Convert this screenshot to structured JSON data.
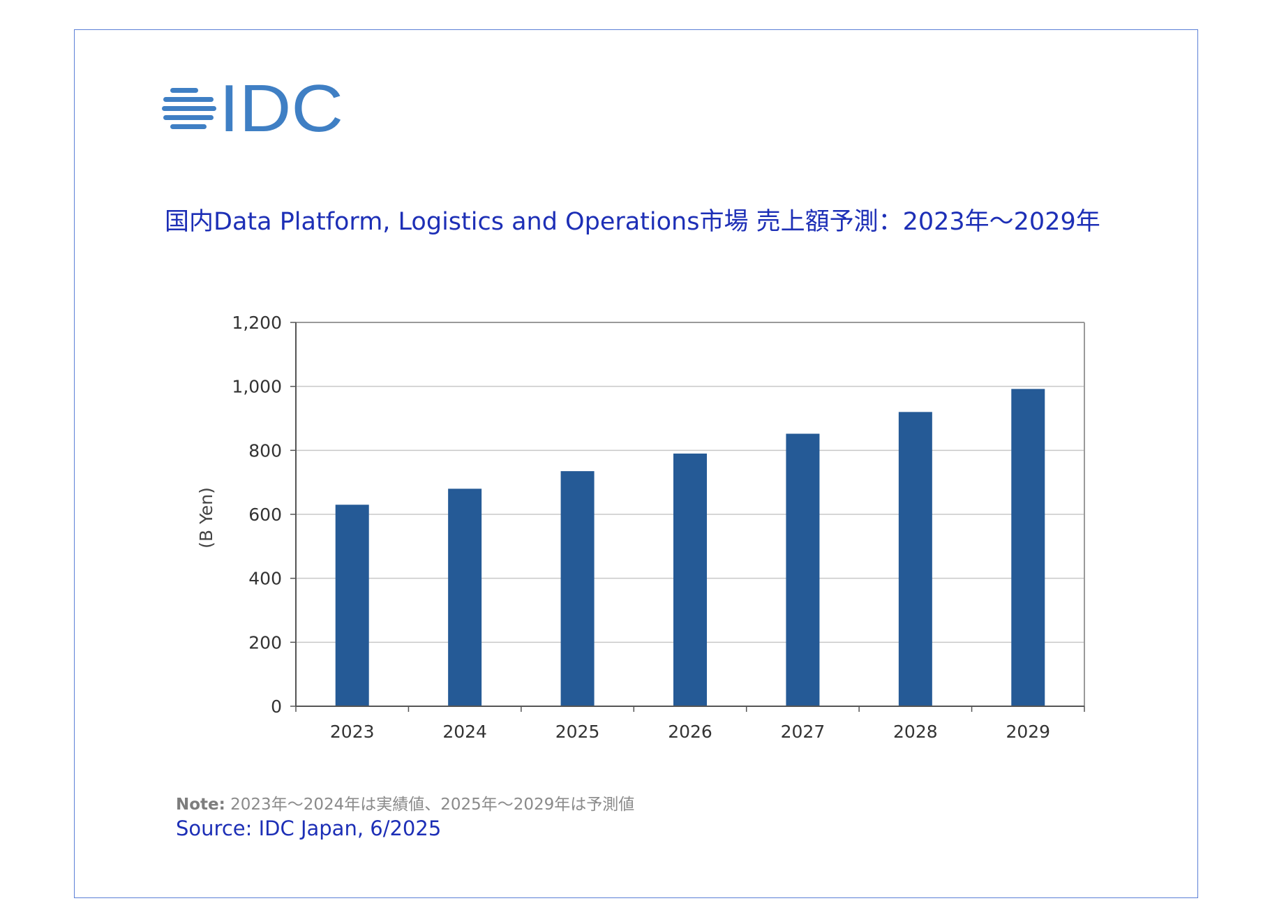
{
  "brand": {
    "logo_text": "IDC",
    "logo_color": "#3f7fc4"
  },
  "chart_data": {
    "type": "bar",
    "title": "国内Data Platform, Logistics and Operations市場 売上額予測：2023年～2029年",
    "xlabel": "",
    "ylabel": "(B Yen)",
    "ylim": [
      0,
      1200
    ],
    "yticks": [
      0,
      200,
      400,
      600,
      800,
      1000,
      1200
    ],
    "ytick_labels": [
      "0",
      "200",
      "400",
      "600",
      "800",
      "1,000",
      "1,200"
    ],
    "categories": [
      "2023",
      "2024",
      "2025",
      "2026",
      "2027",
      "2028",
      "2029"
    ],
    "values": [
      630,
      680,
      735,
      790,
      852,
      920,
      992
    ],
    "bar_color": "#255a96",
    "grid": true,
    "legend": "none"
  },
  "footer": {
    "note_label": "Note:",
    "note_text": " 2023年～2024年は実績値、2025年～2029年は予測値",
    "source": "Source: IDC Japan, 6/2025"
  }
}
